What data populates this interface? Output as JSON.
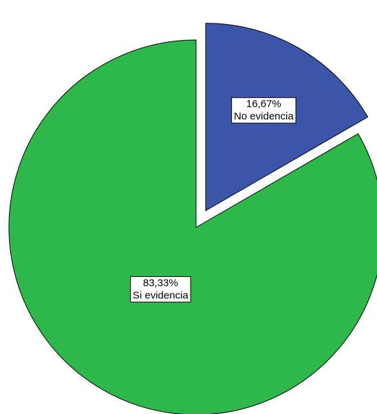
{
  "chart_data": {
    "type": "pie",
    "slices": [
      {
        "label": "No evidencia",
        "value": 16.67,
        "value_label": "16,67%",
        "color": "#3C55A9",
        "exploded": true
      },
      {
        "label": "Si evidencia",
        "value": 83.33,
        "value_label": "83,33%",
        "color": "#2EB74B",
        "exploded": false
      }
    ],
    "start_angle_deg": 0,
    "direction": "clockwise",
    "legend": "none"
  }
}
